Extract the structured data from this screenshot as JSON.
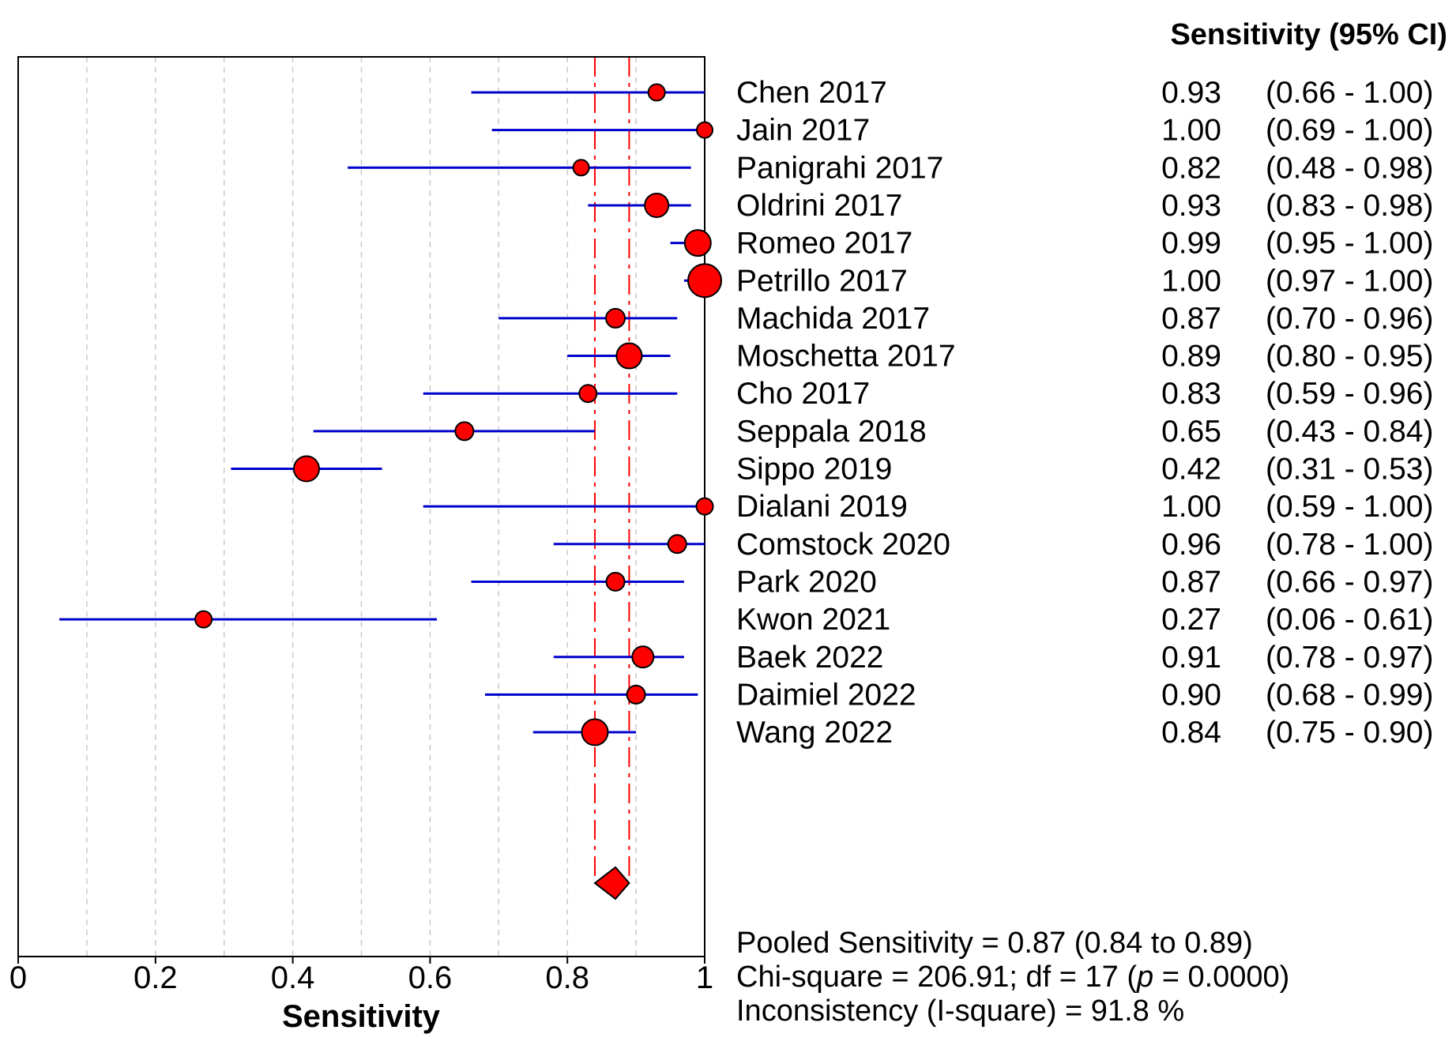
{
  "header": {
    "column_title": "Sensitivity (95% CI)"
  },
  "chart_data": {
    "type": "forest",
    "xlabel": "Sensitivity",
    "xlim": [
      0,
      1
    ],
    "grid": true,
    "grid_values": [
      0.1,
      0.2,
      0.3,
      0.4,
      0.5,
      0.6,
      0.7,
      0.8,
      0.9
    ],
    "xticks": [
      {
        "v": 0.0,
        "label": "0"
      },
      {
        "v": 0.2,
        "label": "0.2"
      },
      {
        "v": 0.4,
        "label": "0.4"
      },
      {
        "v": 0.6,
        "label": "0.6"
      },
      {
        "v": 0.8,
        "label": "0.8"
      },
      {
        "v": 1.0,
        "label": "1"
      }
    ],
    "studies": [
      {
        "label": "Chen 2017",
        "est": 0.93,
        "lo": 0.66,
        "hi": 1.0,
        "est_text": "0.93",
        "ci_text": "(0.66 - 1.00)",
        "size": 10.5
      },
      {
        "label": "Jain 2017",
        "est": 1.0,
        "lo": 0.69,
        "hi": 1.0,
        "est_text": "1.00",
        "ci_text": "(0.69 - 1.00)",
        "size": 10
      },
      {
        "label": "Panigrahi 2017",
        "est": 0.82,
        "lo": 0.48,
        "hi": 0.98,
        "est_text": "0.82",
        "ci_text": "(0.48 - 0.98)",
        "size": 10
      },
      {
        "label": "Oldrini 2017",
        "est": 0.93,
        "lo": 0.83,
        "hi": 0.98,
        "est_text": "0.93",
        "ci_text": "(0.83 - 0.98)",
        "size": 15
      },
      {
        "label": "Romeo 2017",
        "est": 0.99,
        "lo": 0.95,
        "hi": 1.0,
        "est_text": "0.99",
        "ci_text": "(0.95 - 1.00)",
        "size": 16.5
      },
      {
        "label": "Petrillo 2017",
        "est": 1.0,
        "lo": 0.97,
        "hi": 1.0,
        "est_text": "1.00",
        "ci_text": "(0.97 - 1.00)",
        "size": 21
      },
      {
        "label": "Machida 2017",
        "est": 0.87,
        "lo": 0.7,
        "hi": 0.96,
        "est_text": "0.87",
        "ci_text": "(0.70 - 0.96)",
        "size": 12
      },
      {
        "label": "Moschetta 2017",
        "est": 0.89,
        "lo": 0.8,
        "hi": 0.95,
        "est_text": "0.89",
        "ci_text": "(0.80 - 0.95)",
        "size": 16
      },
      {
        "label": "Cho 2017",
        "est": 0.83,
        "lo": 0.59,
        "hi": 0.96,
        "est_text": "0.83",
        "ci_text": "(0.59 - 0.96)",
        "size": 11
      },
      {
        "label": "Seppala 2018",
        "est": 0.65,
        "lo": 0.43,
        "hi": 0.84,
        "est_text": "0.65",
        "ci_text": "(0.43 - 0.84)",
        "size": 11.5
      },
      {
        "label": "Sippo 2019",
        "est": 0.42,
        "lo": 0.31,
        "hi": 0.53,
        "est_text": "0.42",
        "ci_text": "(0.31 - 0.53)",
        "size": 16
      },
      {
        "label": "Dialani 2019",
        "est": 1.0,
        "lo": 0.59,
        "hi": 1.0,
        "est_text": "1.00",
        "ci_text": "(0.59 - 1.00)",
        "size": 10.5
      },
      {
        "label": "Comstock 2020",
        "est": 0.96,
        "lo": 0.78,
        "hi": 1.0,
        "est_text": "0.96",
        "ci_text": "(0.78 - 1.00)",
        "size": 11.5
      },
      {
        "label": "Park 2020",
        "est": 0.87,
        "lo": 0.66,
        "hi": 0.97,
        "est_text": "0.87",
        "ci_text": "(0.66 - 0.97)",
        "size": 11.5
      },
      {
        "label": "Kwon 2021",
        "est": 0.27,
        "lo": 0.06,
        "hi": 0.61,
        "est_text": "0.27",
        "ci_text": "(0.06 - 0.61)",
        "size": 10.5
      },
      {
        "label": "Baek 2022",
        "est": 0.91,
        "lo": 0.78,
        "hi": 0.97,
        "est_text": "0.91",
        "ci_text": "(0.78 - 0.97)",
        "size": 13.5
      },
      {
        "label": "Daimiel 2022",
        "est": 0.9,
        "lo": 0.68,
        "hi": 0.99,
        "est_text": "0.90",
        "ci_text": "(0.68 - 0.99)",
        "size": 11.5
      },
      {
        "label": "Wang 2022",
        "est": 0.84,
        "lo": 0.75,
        "hi": 0.9,
        "est_text": "0.84",
        "ci_text": "(0.75 - 0.90)",
        "size": 16.5
      }
    ],
    "pooled": {
      "est": 0.87,
      "lo": 0.84,
      "hi": 0.89
    }
  },
  "summary": {
    "line1": "Pooled Sensitivity = 0.87 (0.84 to 0.89)",
    "line2_pre": "Chi-square = 206.91; df =  17 (",
    "line2_italic": "p",
    "line2_post": " = 0.0000)",
    "line3": "Inconsistency (I-square) = 91.8 %"
  },
  "colors": {
    "marker": "#ff0000",
    "marker_outline": "#000000",
    "ci_line": "#0000cc",
    "grid": "#c9c9c9",
    "pooled_line": "#ff0000",
    "text": "#000000"
  }
}
